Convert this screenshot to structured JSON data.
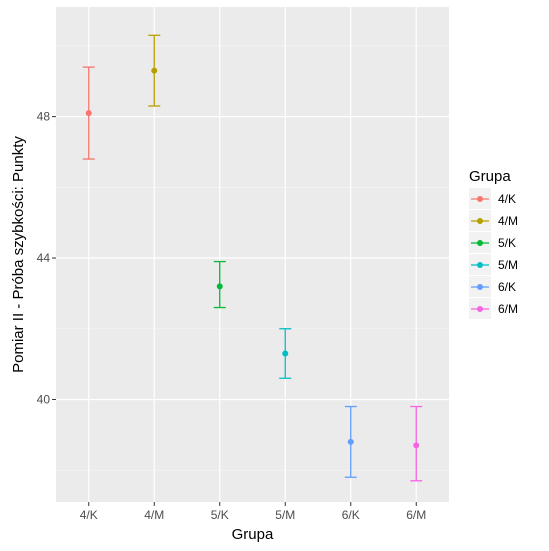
{
  "chart_data": {
    "type": "scatter",
    "style": "point-with-errorbars",
    "xlabel": "Grupa",
    "ylabel": "Pomiar II - Próba szybkości: Punkty",
    "categories": [
      "4/K",
      "4/M",
      "5/K",
      "5/M",
      "6/K",
      "6/M"
    ],
    "y_ticks": [
      40,
      44,
      48
    ],
    "ylim": [
      37.1,
      51.1
    ],
    "grid": true,
    "legend": {
      "title": "Grupa",
      "position": "right"
    },
    "series": [
      {
        "name": "4/K",
        "color": "#F8766D",
        "value": 48.1,
        "lower": 46.8,
        "upper": 49.4
      },
      {
        "name": "4/M",
        "color": "#B79F00",
        "value": 49.3,
        "lower": 48.3,
        "upper": 50.3
      },
      {
        "name": "5/K",
        "color": "#00BA38",
        "value": 43.2,
        "lower": 42.6,
        "upper": 43.9
      },
      {
        "name": "5/M",
        "color": "#00BFC4",
        "value": 41.3,
        "lower": 40.6,
        "upper": 42.0
      },
      {
        "name": "6/K",
        "color": "#619CFF",
        "value": 38.8,
        "lower": 37.8,
        "upper": 39.8
      },
      {
        "name": "6/M",
        "color": "#F564E3",
        "value": 38.7,
        "lower": 37.7,
        "upper": 39.8
      }
    ]
  }
}
